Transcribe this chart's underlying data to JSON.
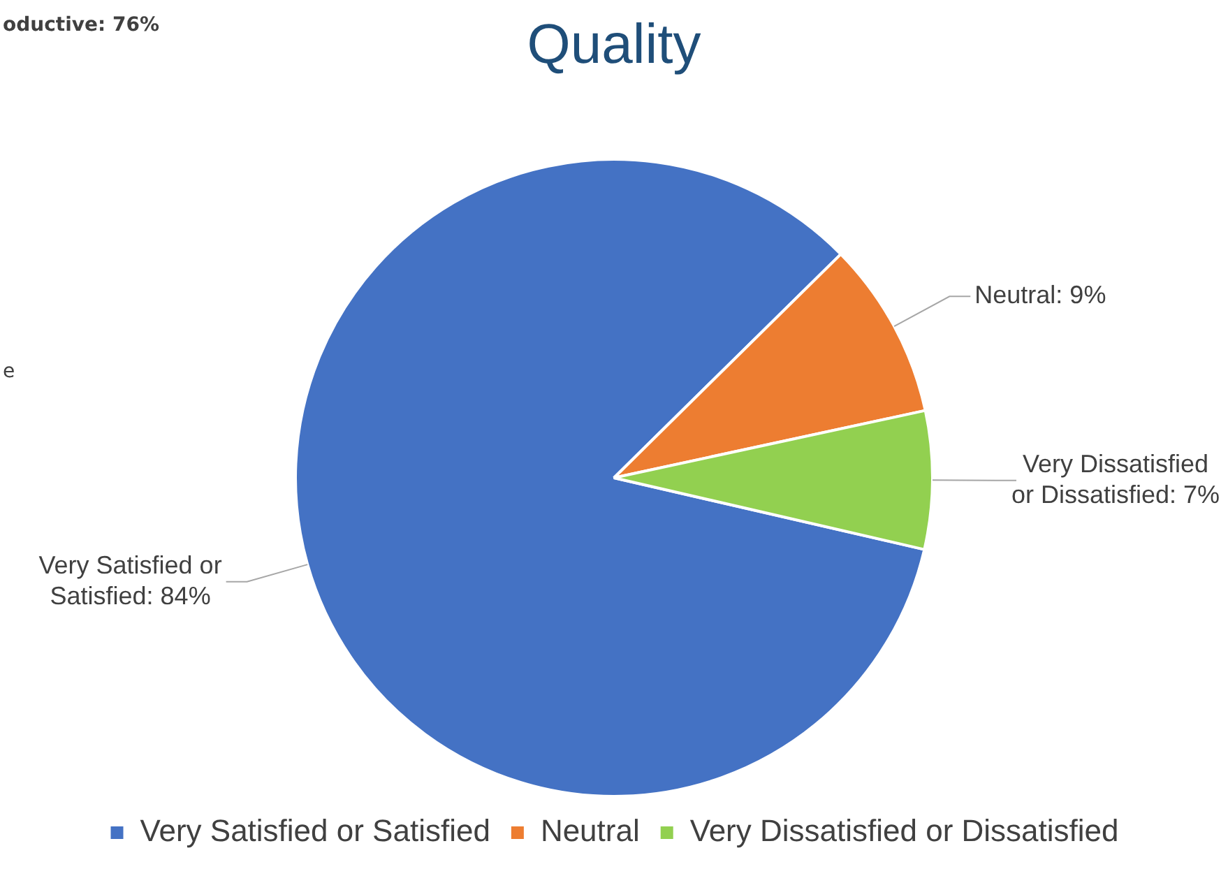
{
  "chart_data": {
    "type": "pie",
    "title": "Quality",
    "categories": [
      "Very Satisfied or Satisfied",
      "Neutral",
      "Very Dissatisfied or Dissatisfied"
    ],
    "values": [
      84,
      9,
      7
    ],
    "colors": [
      "#4472c4",
      "#ed7d31",
      "#92d050"
    ],
    "value_labels": [
      "Very Satisfied or Satisfied: 84%",
      "Neutral: 9%",
      "Very Dissatisfied or Dissatisfied: 7%"
    ],
    "legend": "bottom",
    "annotations": [
      "oductive: 76%",
      "e"
    ]
  }
}
